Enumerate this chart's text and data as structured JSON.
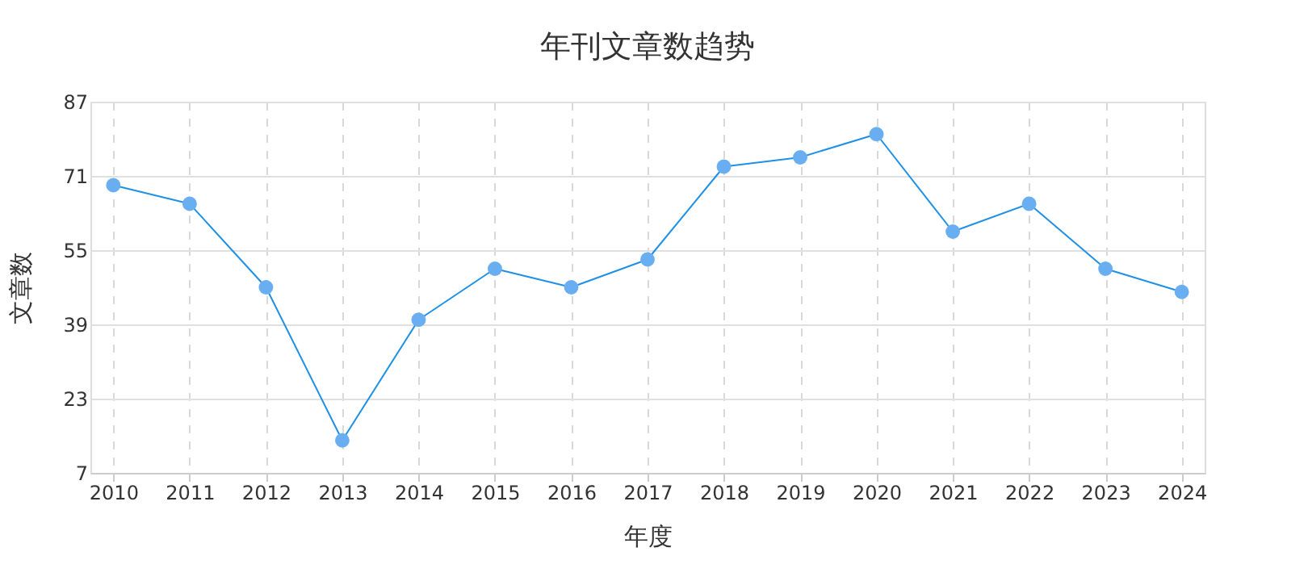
{
  "chart_data": {
    "type": "line",
    "title": "年刊文章数趋势",
    "xlabel": "年度",
    "ylabel": "文章数",
    "categories": [
      "2010",
      "2011",
      "2012",
      "2013",
      "2014",
      "2015",
      "2016",
      "2017",
      "2018",
      "2019",
      "2020",
      "2021",
      "2022",
      "2023",
      "2024"
    ],
    "series": [
      {
        "color": "#1e90e6",
        "values": [
          69,
          65,
          47,
          14,
          40,
          51,
          47,
          53,
          73,
          75,
          80,
          59,
          65,
          51,
          46
        ]
      }
    ],
    "ylim": [
      7,
      87
    ],
    "yticks": [
      7,
      23,
      39,
      55,
      71,
      87
    ],
    "grid": true,
    "marker": "circle",
    "line_style": "solid"
  }
}
